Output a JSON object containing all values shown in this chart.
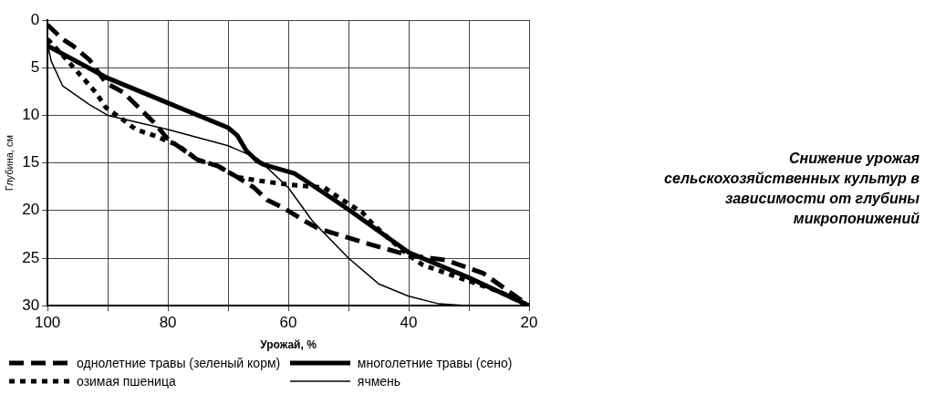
{
  "chart_data": {
    "type": "line",
    "title": "Снижение урожая сельскохозяйственных культур в зависимости от глубины микропонижений",
    "xlabel": "Урожай, %",
    "ylabel": "Глубина, см",
    "xlim": [
      100,
      20
    ],
    "xticks": [
      100,
      {
        "value": 90,
        "label": null
      },
      80,
      {
        "value": 70,
        "label": null
      },
      60,
      {
        "value": 50,
        "label": null
      },
      40,
      {
        "value": 30,
        "label": null
      },
      20
    ],
    "ylim": [
      30,
      0
    ],
    "yticks": [
      0,
      5,
      10,
      15,
      20,
      25,
      30
    ],
    "grid": true,
    "legend": "bottom left",
    "marker": "none",
    "series": [
      {
        "name": "однолетние травы (зеленый корм)",
        "color": "#000000",
        "line_style": "dashed",
        "x": [
          100,
          97.5,
          95.8,
          93,
          90.3,
          87.4,
          85.3,
          82.4,
          80,
          75,
          71.8,
          69,
          65.7,
          63.5,
          60.6,
          57.3,
          55,
          46.7,
          40,
          33.8,
          27.6,
          20
        ],
        "values": [
          0.5,
          2,
          2.7,
          4.2,
          6.6,
          7.6,
          8.9,
          10.7,
          12.5,
          14.7,
          15.3,
          16.3,
          17.6,
          18.9,
          19.8,
          21.1,
          21.9,
          23.5,
          24.7,
          25.2,
          26.6,
          30
        ]
      },
      {
        "name": "многолетние травы (сено)",
        "color": "#000000",
        "line_style": "solid",
        "x": [
          100,
          90,
          80,
          70,
          68.5,
          67,
          65.2,
          64,
          59,
          56.8,
          50,
          40,
          30.2,
          20
        ],
        "values": [
          2.7,
          6.1,
          8.7,
          11.3,
          12.1,
          13.7,
          14.8,
          15.2,
          16.1,
          17,
          19.9,
          24.4,
          27,
          30
        ]
      },
      {
        "name": "озимая пшеница",
        "color": "#000000",
        "line_style": "dotted",
        "x": [
          100,
          97.5,
          93.8,
          92,
          90.3,
          87.8,
          85.3,
          82.4,
          78.5,
          75,
          71.8,
          68.5,
          63.5,
          59.5,
          54,
          51,
          47.7,
          46,
          43.4,
          40,
          37.7,
          35,
          30.5,
          25,
          20
        ],
        "values": [
          2,
          3.7,
          6.3,
          7.6,
          9.2,
          10.3,
          11.5,
          12.1,
          13.1,
          14.7,
          15.3,
          16.5,
          17,
          17.3,
          17.6,
          18.9,
          20.2,
          21.4,
          22.9,
          24.7,
          25.7,
          26.3,
          27.3,
          28.5,
          30
        ]
      },
      {
        "name": "ячмень",
        "color": "#000000",
        "line_style": "solid",
        "x": [
          100,
          99.4,
          97.5,
          93,
          90,
          80,
          70,
          65.2,
          60,
          56,
          50,
          45,
          40,
          35,
          30,
          20
        ],
        "values": [
          2.5,
          4.3,
          6.9,
          8.9,
          10,
          11.5,
          13.2,
          14.5,
          17.6,
          21.1,
          25,
          27.7,
          29,
          29.8,
          30,
          30
        ]
      }
    ]
  }
}
